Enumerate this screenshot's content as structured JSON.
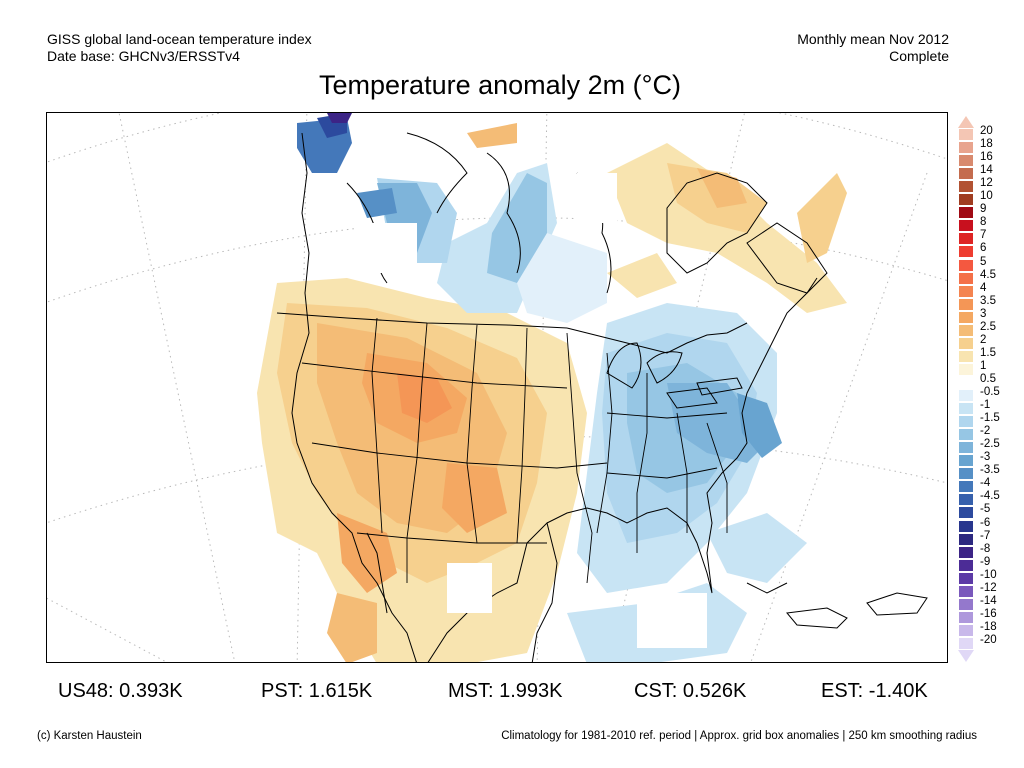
{
  "header": {
    "left_line1": "GISS global land-ocean temperature index",
    "left_line2": "Date base: GHCNv3/ERSSTv4",
    "right_line1": "Monthly mean Nov 2012",
    "right_line2": "Complete"
  },
  "title": "Temperature anomaly 2m (°C)",
  "colorbar": {
    "levels": [
      "20",
      "18",
      "16",
      "14",
      "12",
      "10",
      "9",
      "8",
      "7",
      "6",
      "5",
      "4.5",
      "4",
      "3.5",
      "3",
      "2.5",
      "2",
      "1.5",
      "1",
      "0.5",
      "-0.5",
      "-1",
      "-1.5",
      "-2",
      "-2.5",
      "-3",
      "-3.5",
      "-4",
      "-4.5",
      "-5",
      "-6",
      "-7",
      "-8",
      "-9",
      "-10",
      "-12",
      "-14",
      "-16",
      "-18",
      "-20"
    ],
    "colors": [
      "#f4c6b4",
      "#e8a48e",
      "#d88a6e",
      "#c46c4e",
      "#b25232",
      "#a03c20",
      "#a00a14",
      "#c8101e",
      "#de2424",
      "#ee3c30",
      "#f45840",
      "#f47048",
      "#f48450",
      "#f49656",
      "#f4a862",
      "#f4bc76",
      "#f6d08e",
      "#f8e4b0",
      "#fcf4da",
      "#ffffff",
      "#e2f0fa",
      "#c8e4f4",
      "#b0d6ee",
      "#96c6e4",
      "#7eb4da",
      "#68a4d0",
      "#5690c6",
      "#4478ba",
      "#3660ac",
      "#2c4a9e",
      "#28368e",
      "#2c2880",
      "#3c2486",
      "#4c2c96",
      "#5c3aa6",
      "#7a58bc",
      "#9478cc",
      "#ae98dc",
      "#c8b8ea",
      "#e0d8f6"
    ]
  },
  "stats": {
    "us48": "US48: 0.393K",
    "pst": "PST: 1.615K",
    "mst": "MST: 1.993K",
    "cst": "CST: 0.526K",
    "est": "EST: -1.40K"
  },
  "footer": {
    "credit": "(c) Karsten Haustein",
    "note": "Climatology for 1981-2010 ref. period | Approx. grid box anomalies | 250 km smoothing radius"
  }
}
